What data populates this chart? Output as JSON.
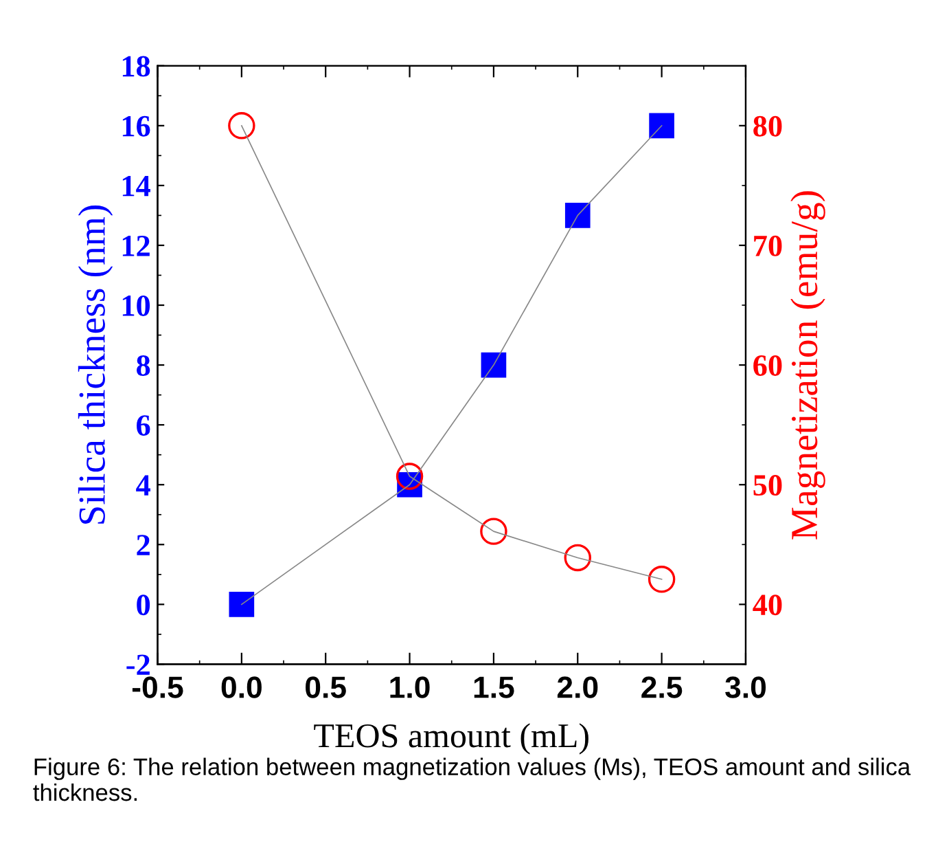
{
  "chart_data": {
    "type": "line",
    "xlabel": "TEOS amount (mL)",
    "ylabel": "Silica thickness (nm)",
    "y2label": "Magnetization (emu/g)",
    "x": [
      0.0,
      1.0,
      1.5,
      2.0,
      2.5
    ],
    "series": [
      {
        "color": "#0000ff",
        "values": [
          0,
          4,
          8,
          13,
          16
        ],
        "marker": "square"
      },
      {
        "color": "#ff0000",
        "values": [
          80,
          50.7,
          46.1,
          43.9,
          42.1
        ],
        "marker": "circle",
        "axis": "y2"
      }
    ],
    "xlim": [
      -0.5,
      3.0
    ],
    "xticks": [
      {
        "value": -0.5,
        "label": "-0.5"
      },
      {
        "value": 0,
        "label": "0.0"
      },
      0.5,
      {
        "value": 1,
        "label": "1.0"
      },
      1.5,
      {
        "value": 2,
        "label": "2.0"
      },
      2.5,
      {
        "value": 3,
        "label": "3.0"
      }
    ],
    "ylim": [
      -2,
      18
    ],
    "yticks": [
      -2,
      0,
      2,
      4,
      6,
      8,
      10,
      12,
      14,
      16,
      18
    ],
    "y2lim": [
      35,
      85
    ],
    "y2ticks": [
      40,
      50,
      60,
      70,
      80
    ],
    "grid": false,
    "legend": false,
    "line_style": "solid",
    "annotations": [
      "Figure 6: The relation between magnetization values (Ms), TEOS amount and silica thickness."
    ]
  }
}
